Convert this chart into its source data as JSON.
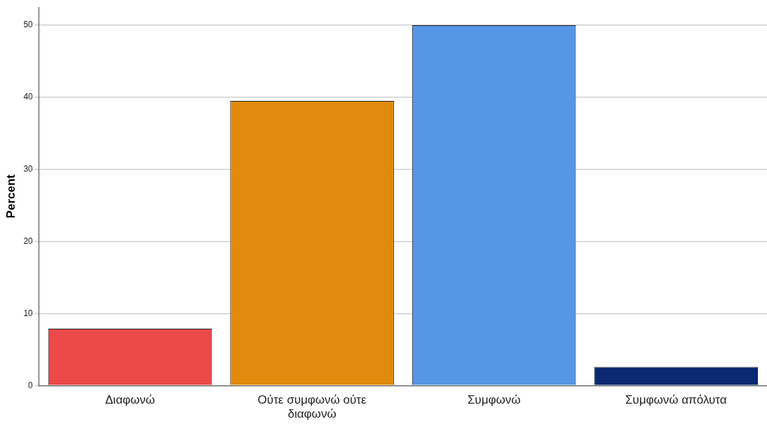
{
  "chart_data": {
    "type": "bar",
    "ylabel": "Percent",
    "categories": [
      "Διαφωνώ",
      "Ούτε συμφωνώ ούτε διαφωνώ",
      "Συμφωνώ",
      "Συμφωνώ απόλυτα"
    ],
    "values": [
      7.9,
      39.5,
      50,
      2.6
    ],
    "colors": [
      "#ec4a4a",
      "#e08a0e",
      "#5596e6",
      "#0b2872"
    ],
    "ylim": [
      0,
      52.5
    ],
    "yticks": [
      0,
      10,
      20,
      30,
      40,
      50
    ],
    "grid": "y",
    "legend": false
  }
}
